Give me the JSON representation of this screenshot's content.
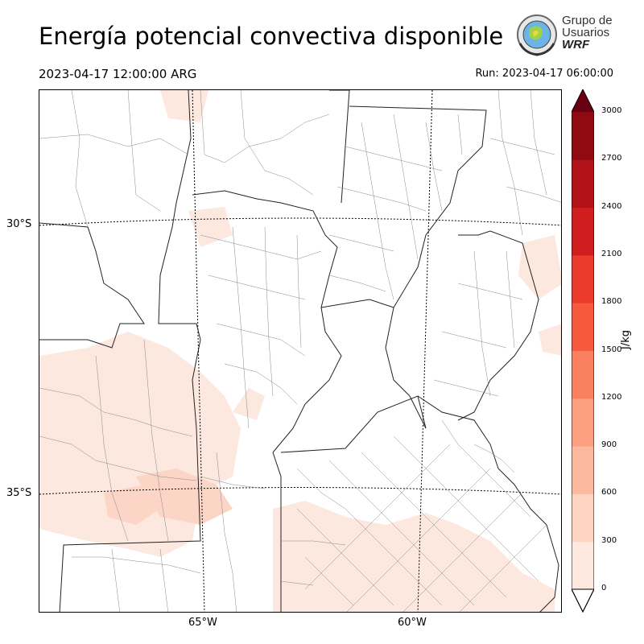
{
  "header": {
    "title": "Energía potencial convectiva disponible",
    "valid_time": "2023-04-17 12:00:00 ARG",
    "run_time": "Run: 2023-04-17 06:00:00"
  },
  "logo": {
    "line1": "Grupo de",
    "line2": "Usuarios",
    "line3": "WRF"
  },
  "map": {
    "latitude_labels": [
      "30°S",
      "35°S"
    ],
    "longitude_labels": [
      "65°W",
      "60°W"
    ]
  },
  "colorbar": {
    "units": "J/kg",
    "levels": [
      0,
      300,
      600,
      900,
      1200,
      1500,
      1800,
      2100,
      2400,
      2700,
      3000
    ],
    "colors": [
      "#fee9e1",
      "#fdd3c1",
      "#fcb99d",
      "#fc9f7e",
      "#fb8060",
      "#f6593e",
      "#ea3b2b",
      "#d01d1e",
      "#b01217",
      "#900a12",
      "#6b0010"
    ],
    "tick_labels": [
      "0",
      "300",
      "600",
      "900",
      "1200",
      "1500",
      "1800",
      "2100",
      "2400",
      "2700",
      "3000"
    ]
  }
}
